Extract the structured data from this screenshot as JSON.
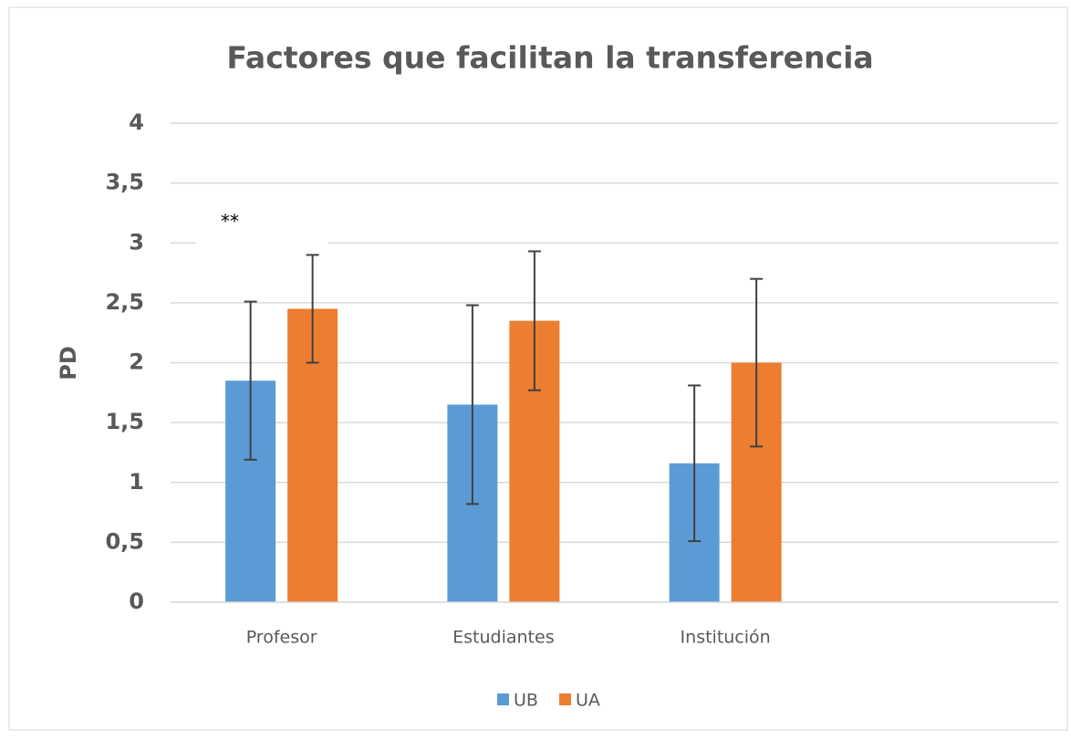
{
  "chart_data": {
    "type": "bar",
    "title": "Factores que facilitan  la transferencia",
    "y_label": "PD",
    "annotation": "**",
    "categories": [
      "Profesor",
      "Estudiantes",
      "Institución",
      null
    ],
    "series": [
      {
        "name": "UB",
        "color": "#5b9bd5",
        "values": [
          1.85,
          1.65,
          1.16,
          null
        ],
        "errors": [
          0.66,
          0.83,
          0.65,
          null
        ]
      },
      {
        "name": "UA",
        "color": "#ed7d31",
        "values": [
          2.45,
          2.35,
          2.0,
          null
        ],
        "errors": [
          0.45,
          0.58,
          0.7,
          null
        ]
      }
    ],
    "ylim": [
      0,
      4
    ],
    "yticks": [
      0,
      {
        "value": 0.5,
        "label": "0,5"
      },
      1,
      {
        "value": 1.5,
        "label": "1,5"
      },
      2,
      {
        "value": 2.5,
        "label": "2,5"
      },
      3,
      {
        "value": 3.5,
        "label": "3,5"
      },
      4
    ],
    "grid": true,
    "legend": "bottom"
  }
}
